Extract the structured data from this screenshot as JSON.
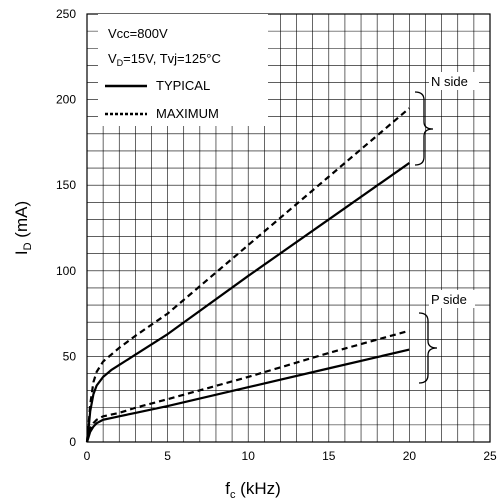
{
  "chart_data": {
    "type": "line",
    "xlabel": "f",
    "xlabel_sub": "c",
    "xlabel_unit": " (kHz)",
    "ylabel": "I",
    "ylabel_sub": "D",
    "ylabel_unit": " (mA)",
    "xlim": [
      0,
      25
    ],
    "ylim": [
      0,
      250
    ],
    "xticks": [
      "0",
      "5",
      "10",
      "15",
      "20",
      "25"
    ],
    "yticks": [
      "0",
      "50",
      "100",
      "150",
      "200",
      "250"
    ],
    "grid": true,
    "legend": {
      "position": "top-left",
      "line1": "Vcc=800V",
      "line2_main": "V",
      "line2_sub": "D",
      "line2_rest": "=15V, Tvj=125°C",
      "typical": "TYPICAL",
      "maximum": "MAXIMUM"
    },
    "annotations": {
      "n_side": "N side",
      "p_side": "P side"
    },
    "series": [
      {
        "name": "TYPICAL",
        "group": "N side",
        "style": "solid",
        "x": [
          0,
          0.1,
          0.2,
          0.4,
          0.6,
          1.0,
          1.5,
          2,
          3,
          5,
          10,
          15,
          20
        ],
        "y": [
          0,
          8,
          18,
          28,
          33,
          38,
          42,
          45,
          51,
          63,
          97,
          130,
          163
        ]
      },
      {
        "name": "MAXIMUM",
        "group": "N side",
        "style": "dashed",
        "x": [
          0,
          0.1,
          0.2,
          0.4,
          0.6,
          1.0,
          1.5,
          2,
          3,
          5,
          10,
          15,
          20
        ],
        "y": [
          0,
          10,
          22,
          35,
          41,
          47,
          51,
          55,
          62,
          75,
          115,
          155,
          195
        ]
      },
      {
        "name": "TYPICAL",
        "group": "P side",
        "style": "solid",
        "x": [
          0,
          0.1,
          0.2,
          0.4,
          0.6,
          1.0,
          1.5,
          2,
          3,
          5,
          10,
          15,
          20
        ],
        "y": [
          0,
          3,
          6,
          9,
          11,
          13,
          14,
          15,
          17,
          21,
          32,
          43,
          54
        ]
      },
      {
        "name": "MAXIMUM",
        "group": "P side",
        "style": "dashed",
        "x": [
          0,
          0.1,
          0.2,
          0.4,
          0.6,
          1.0,
          1.5,
          2,
          3,
          5,
          10,
          15,
          20
        ],
        "y": [
          0,
          4,
          8,
          11,
          13,
          15,
          16,
          17,
          20,
          25,
          38,
          52,
          65
        ]
      }
    ]
  }
}
